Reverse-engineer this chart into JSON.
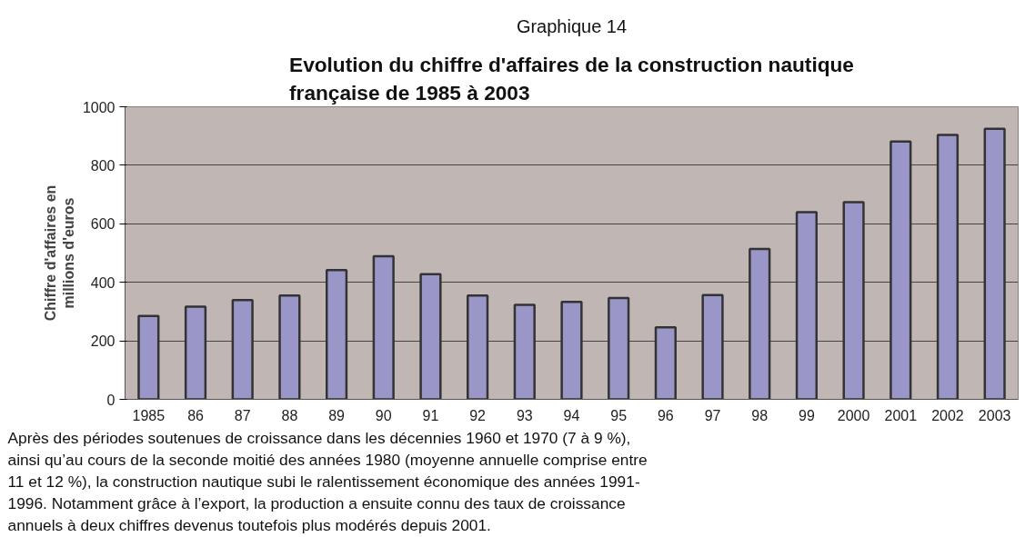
{
  "chart_data": {
    "type": "bar",
    "title": "Graphique 14",
    "subtitle": "Evolution du chiffre d'affaires de la construction nautique\nfrançaise de 1985 à 2003",
    "ylabel": "Chiffre d'affaires en\nmillions d'euros",
    "categories": [
      "1985",
      "86",
      "87",
      "88",
      "89",
      "90",
      "91",
      "92",
      "93",
      "94",
      "95",
      "96",
      "97",
      "98",
      "99",
      "2000",
      "2001",
      "2002",
      "2003"
    ],
    "values": [
      285,
      317,
      339,
      355,
      442,
      489,
      428,
      355,
      323,
      333,
      346,
      246,
      356,
      514,
      640,
      674,
      881,
      904,
      925
    ],
    "color": "#9b96c8",
    "ylim": [
      0,
      1000
    ],
    "yticks": [
      0,
      200,
      400,
      600,
      800,
      1000
    ],
    "grid": "y",
    "annotations": [
      "Après des périodes soutenues de croissance dans les décennies 1960 et 1970 (7 à 9 %),\nainsi qu’au cours de la seconde moitié des années 1980 (moyenne annuelle comprise entre\n11 et 12 %), la construction nautique subi le ralentissement économique des années 1991-\n1996. Notamment grâce à l’export, la production a ensuite connu des taux de croissance\nannuels à deux chiffres devenus toutefois plus modérés depuis 2001."
    ]
  }
}
